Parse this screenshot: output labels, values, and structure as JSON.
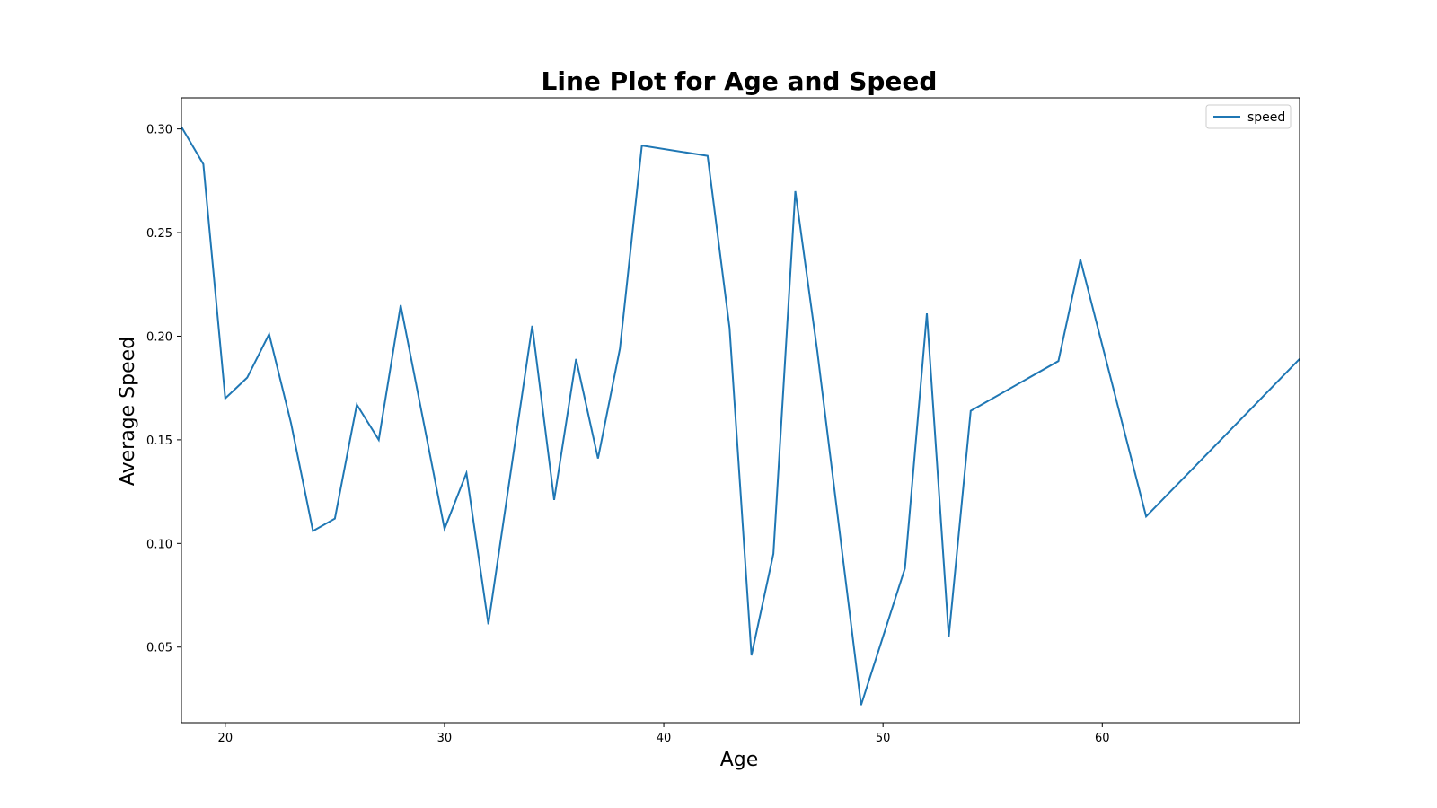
{
  "chart_data": {
    "type": "line",
    "title": "Line Plot for Age and Speed",
    "xlabel": "Age",
    "ylabel": "Average Speed",
    "xlim": [
      18,
      69
    ],
    "ylim": [
      0.0135,
      0.315
    ],
    "xticks": [
      20,
      30,
      40,
      50,
      60
    ],
    "yticks": [
      0.05,
      0.1,
      0.15,
      0.2,
      0.25,
      0.3
    ],
    "ytick_labels": [
      "0.05",
      "0.10",
      "0.15",
      "0.20",
      "0.25",
      "0.30"
    ],
    "grid": false,
    "legend": "top-right",
    "colors": {
      "series": "#1f77b4"
    },
    "series": [
      {
        "name": "speed",
        "x": [
          18,
          19,
          20,
          21,
          22,
          23,
          24,
          25,
          26,
          27,
          28,
          30,
          31,
          32,
          34,
          35,
          36,
          37,
          38,
          39,
          42,
          43,
          44,
          45,
          46,
          47,
          49,
          51,
          52,
          53,
          54,
          58,
          59,
          62,
          69
        ],
        "values": [
          0.301,
          0.283,
          0.17,
          0.18,
          0.201,
          0.158,
          0.106,
          0.112,
          0.167,
          0.15,
          0.215,
          0.107,
          0.134,
          0.061,
          0.205,
          0.121,
          0.189,
          0.141,
          0.194,
          0.292,
          0.287,
          0.204,
          0.046,
          0.095,
          0.27,
          0.193,
          0.022,
          0.088,
          0.211,
          0.055,
          0.164,
          0.188,
          0.237,
          0.113,
          0.189
        ]
      }
    ]
  }
}
